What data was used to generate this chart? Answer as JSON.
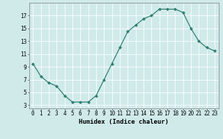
{
  "x": [
    0,
    1,
    2,
    3,
    4,
    5,
    6,
    7,
    8,
    9,
    10,
    11,
    12,
    13,
    14,
    15,
    16,
    17,
    18,
    19,
    20,
    21,
    22,
    23
  ],
  "y": [
    9.5,
    7.5,
    6.5,
    6.0,
    4.5,
    3.5,
    3.5,
    3.5,
    4.5,
    7.0,
    9.5,
    12.0,
    14.5,
    15.5,
    16.5,
    17.0,
    18.0,
    18.0,
    18.0,
    17.5,
    15.0,
    13.0,
    12.0,
    11.5
  ],
  "xlabel": "Humidex (Indice chaleur)",
  "yticks": [
    3,
    5,
    7,
    9,
    11,
    13,
    15,
    17
  ],
  "xticks": [
    0,
    1,
    2,
    3,
    4,
    5,
    6,
    7,
    8,
    9,
    10,
    11,
    12,
    13,
    14,
    15,
    16,
    17,
    18,
    19,
    20,
    21,
    22,
    23
  ],
  "xlim": [
    -0.5,
    23.5
  ],
  "ylim": [
    2.5,
    19.0
  ],
  "line_color": "#2e7d6e",
  "marker_color": "#2e7d6e",
  "bg_color": "#d0eaea",
  "grid_color": "#ffffff",
  "axis_color": "#888888",
  "xlabel_fontsize": 6.5,
  "tick_fontsize": 5.5
}
